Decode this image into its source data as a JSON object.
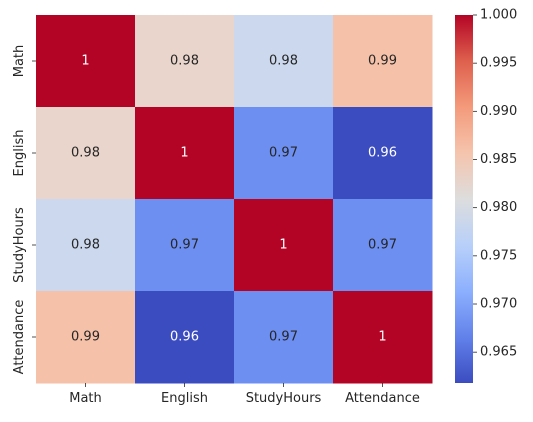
{
  "chart_data": {
    "type": "heatmap",
    "title": "",
    "xlabel": "",
    "ylabel": "",
    "x_categories": [
      "Math",
      "English",
      "StudyHours",
      "Attendance"
    ],
    "y_categories": [
      "Math",
      "English",
      "StudyHours",
      "Attendance"
    ],
    "values": [
      [
        1.0,
        0.98,
        0.98,
        0.99
      ],
      [
        0.98,
        1.0,
        0.97,
        0.96
      ],
      [
        0.98,
        0.97,
        1.0,
        0.97
      ],
      [
        0.99,
        0.96,
        0.97,
        1.0
      ]
    ],
    "cell_labels": [
      [
        "1",
        "0.98",
        "0.98",
        "0.99"
      ],
      [
        "0.98",
        "1",
        "0.97",
        "0.96"
      ],
      [
        "0.98",
        "0.97",
        "1",
        "0.97"
      ],
      [
        "0.99",
        "0.96",
        "0.97",
        "1"
      ]
    ],
    "cell_colors": [
      [
        "#b40426",
        "#e9d5cb",
        "#cbd8ee",
        "#f5c1a9"
      ],
      [
        "#e9d5cb",
        "#b40426",
        "#6c8ff1",
        "#3b4cc0"
      ],
      [
        "#cbd8ee",
        "#6c8ff1",
        "#b40426",
        "#6c8ff1"
      ],
      [
        "#f5c1a9",
        "#3b4cc0",
        "#6c8ff1",
        "#b40426"
      ]
    ],
    "colorbar": {
      "colormap": "coolwarm",
      "min": 0.9618,
      "max": 1.0,
      "ticks": [
        0.965,
        0.97,
        0.975,
        0.98,
        0.985,
        0.99,
        0.995,
        1.0
      ],
      "tick_labels": [
        "0.965",
        "0.970",
        "0.975",
        "0.980",
        "0.985",
        "0.990",
        "0.995",
        "1.000"
      ]
    },
    "grid": false,
    "legend": "colorbar-right"
  }
}
